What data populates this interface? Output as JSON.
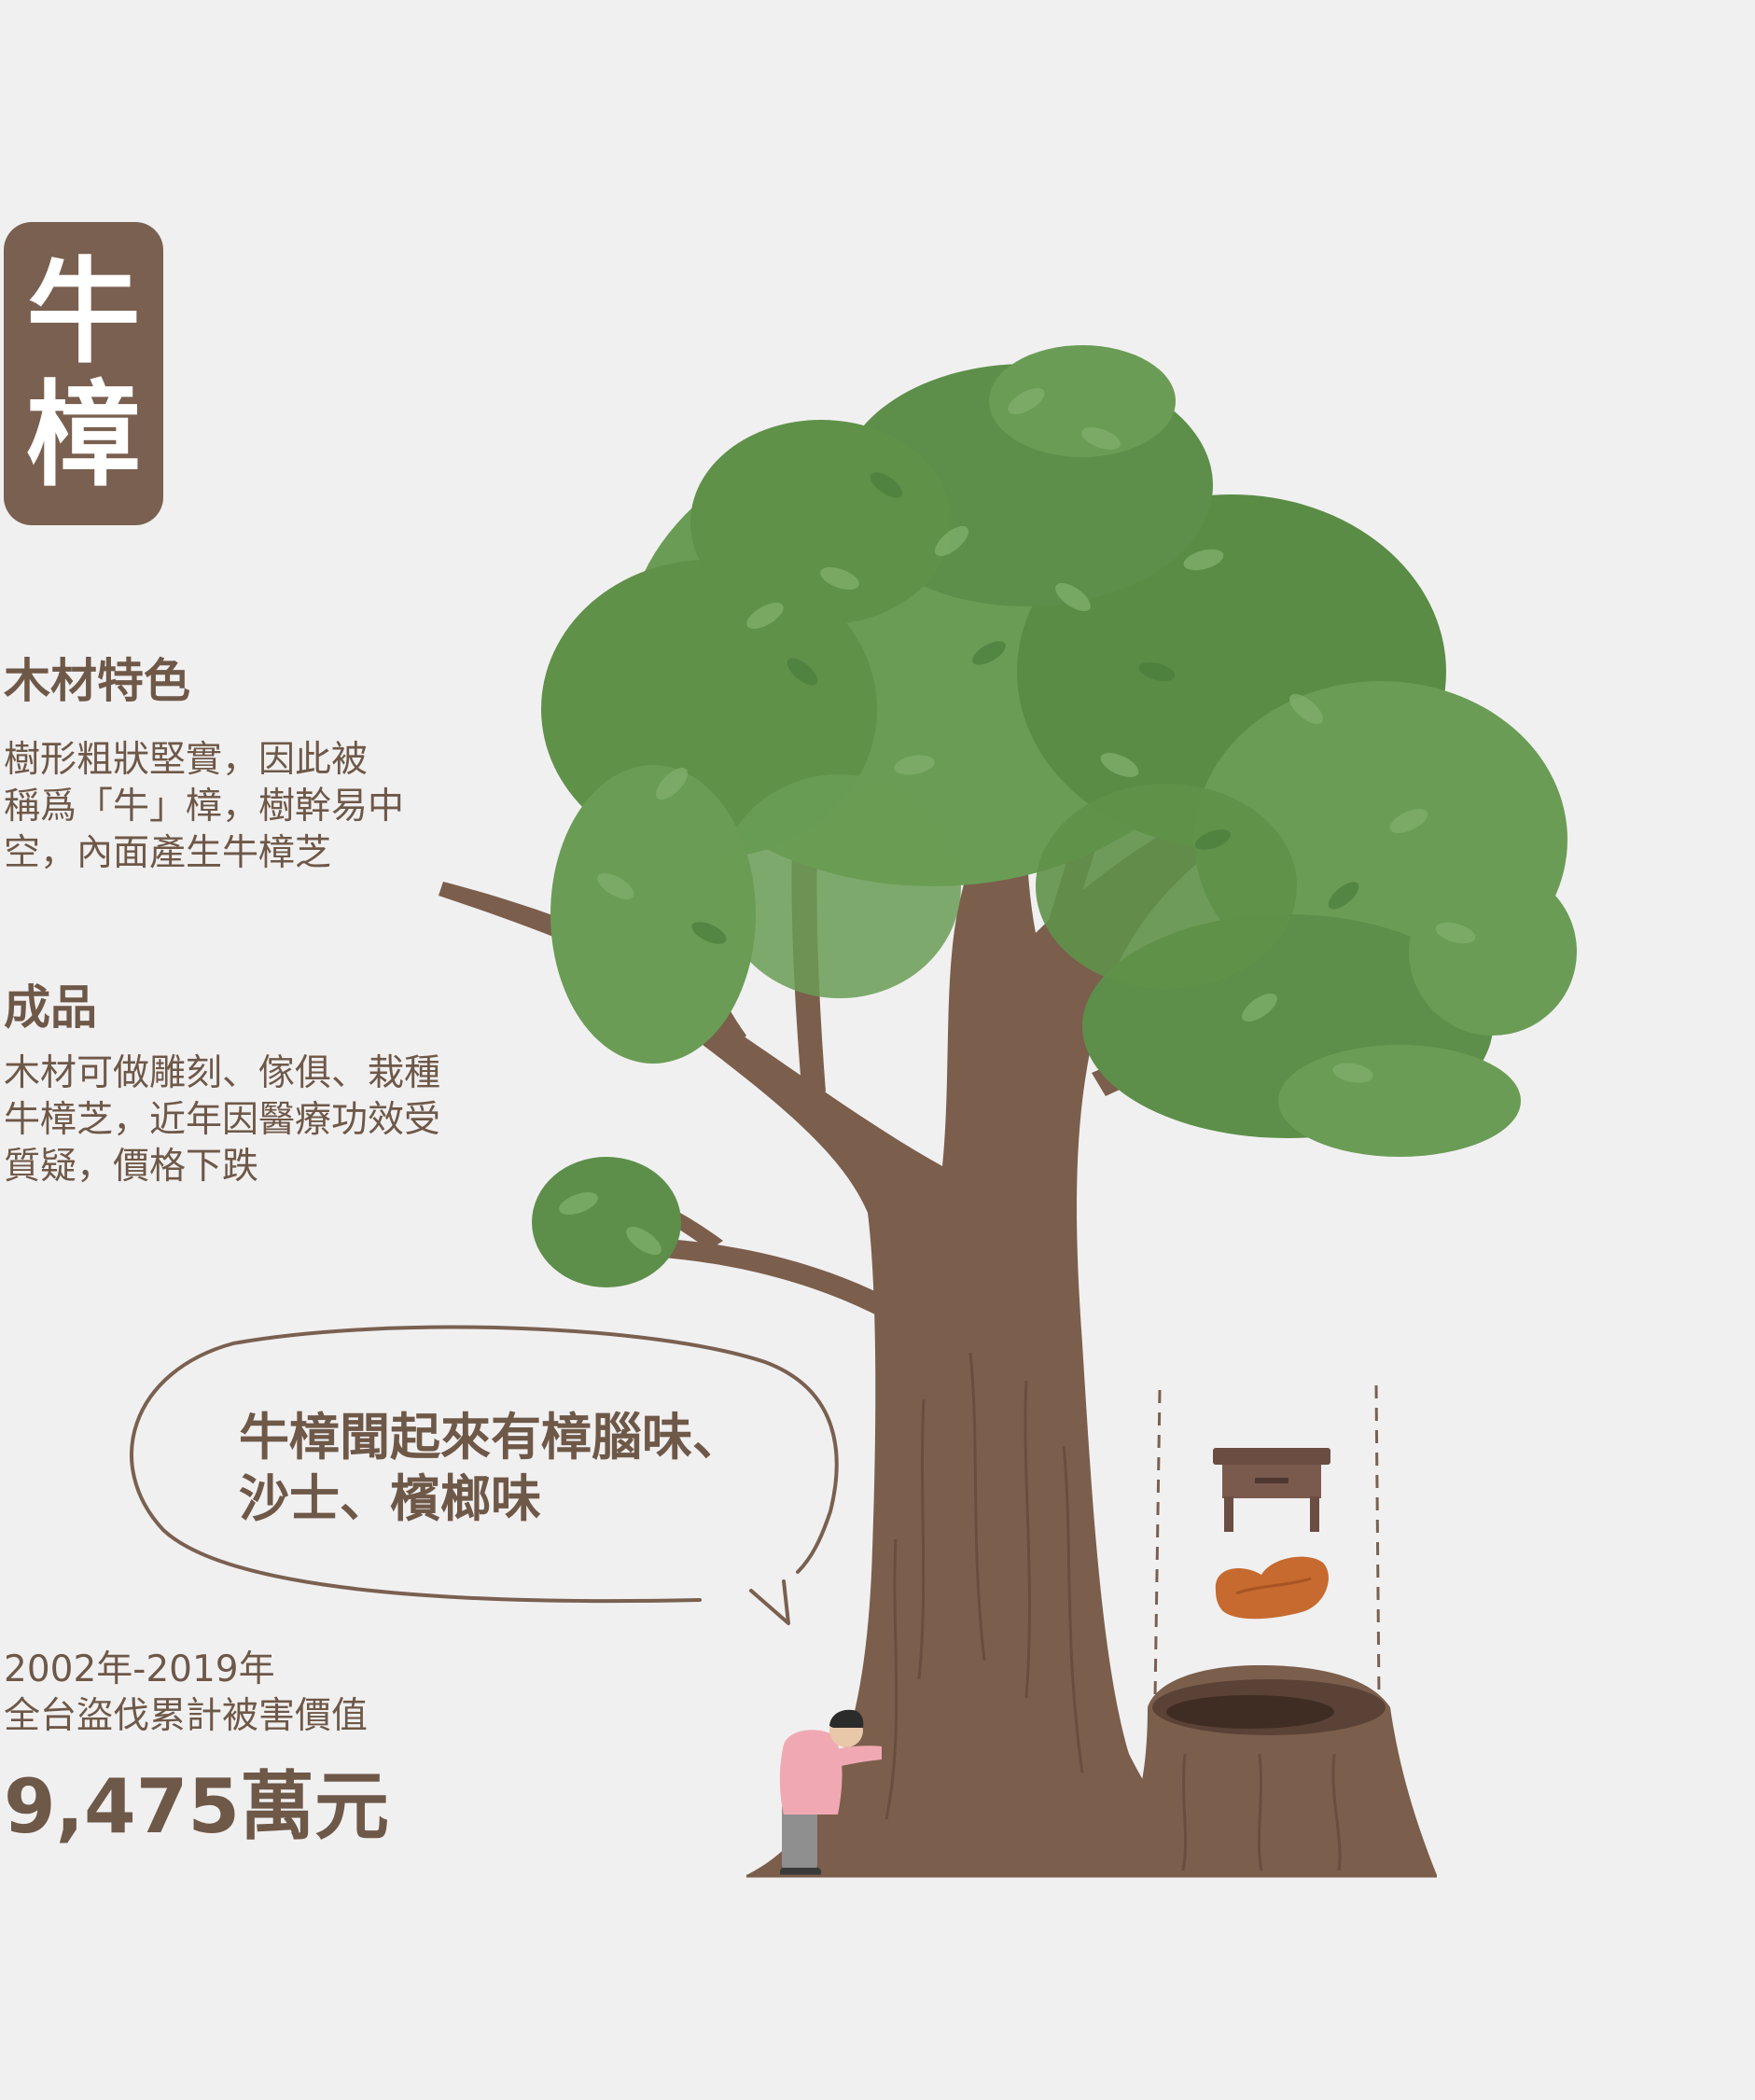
{
  "title": {
    "char1": "牛",
    "char2": "樟"
  },
  "wood_features": {
    "heading": "木材特色",
    "lines": [
      "樹形粗狀堅實，因此被",
      "稱爲「牛」樟，樹幹易中",
      "空，內面產生牛樟芝"
    ]
  },
  "products": {
    "heading": "成品",
    "lines": [
      "木材可做雕刻、傢俱、栽種",
      "牛樟芝，近年因醫療功效受",
      "質疑，價格下跌"
    ]
  },
  "bubble": {
    "lines": [
      "牛樟聞起來有樟腦味、",
      "沙士、檳榔味"
    ]
  },
  "stat": {
    "period": "2002年-2019年",
    "label": "全台盜伐累計被害價值",
    "value": "9,475萬元"
  },
  "colors": {
    "background": "#f1f0f1",
    "brown_text": "#6e5848",
    "badge": "#7a6050",
    "leaf": "#5d8f4a",
    "trunk": "#7b5e4c"
  }
}
